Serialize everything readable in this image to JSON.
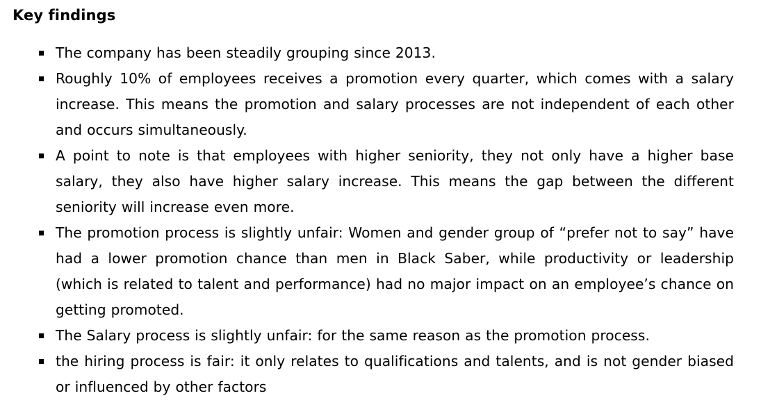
{
  "heading": "Key findings",
  "findings": [
    "The company has been steadily grouping since 2013.",
    "Roughly 10% of employees receives a promotion every quarter, which comes with a salary increase. This means the promotion and salary processes are not independent of each other and occurs simultaneously.",
    "A point to note is that employees with higher seniority, they not only have a higher base salary, they also have higher salary increase. This means the gap between the different seniority will increase even more.",
    "The promotion process is slightly unfair: Women and gender group of “prefer not to say” have had a lower promotion chance than men in Black Saber, while productivity or leadership (which is related to talent and performance) had no major impact on an employee’s chance on getting promoted.",
    "The Salary process is slightly unfair: for the same reason as the promotion process.",
    "the hiring process is fair: it only relates to qualifications and talents, and is not gender biased or influenced by other factors"
  ]
}
